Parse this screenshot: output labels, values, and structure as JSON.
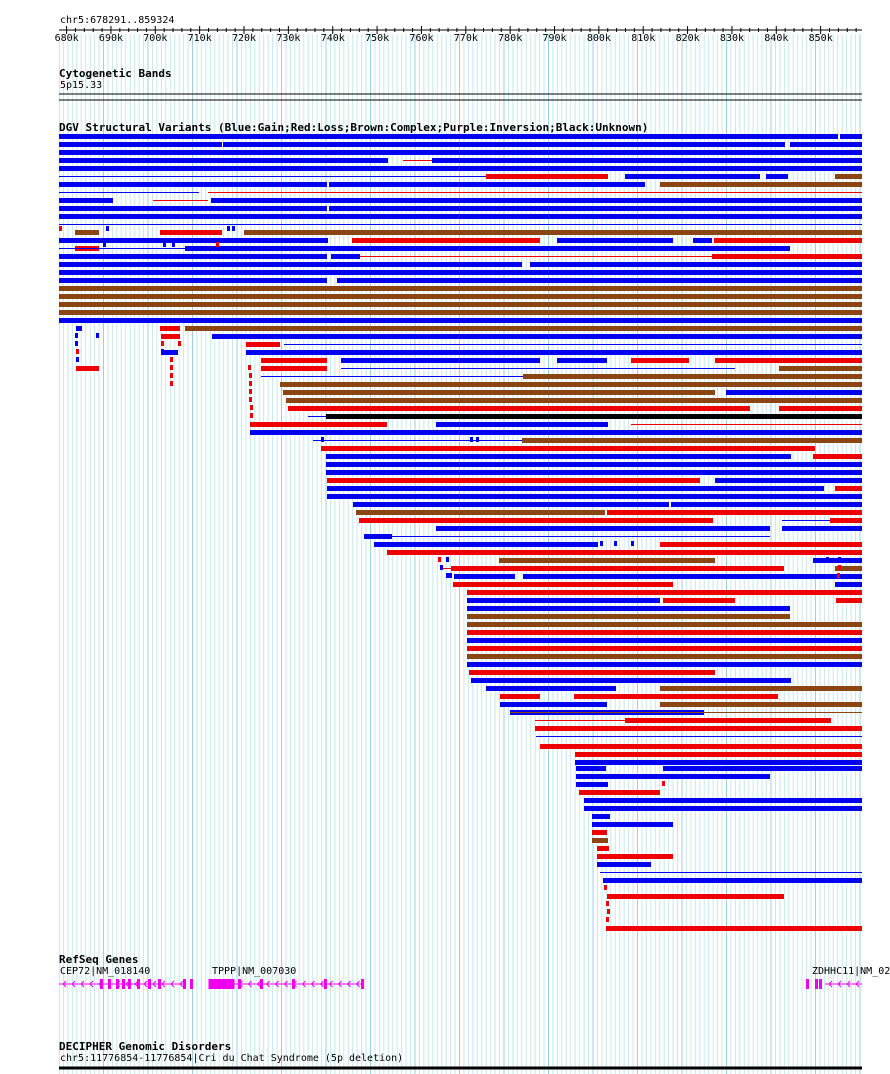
{
  "ruler": {
    "region_label": "chr5:678291..859324",
    "start": 678291,
    "end": 859324,
    "tick_labels": [
      "680k",
      "690k",
      "700k",
      "710k",
      "720k",
      "730k",
      "740k",
      "750k",
      "760k",
      "770k",
      "780k",
      "790k",
      "800k",
      "810k",
      "820k",
      "830k",
      "840k",
      "850k"
    ],
    "tick_values": [
      680000,
      690000,
      700000,
      710000,
      720000,
      730000,
      740000,
      750000,
      760000,
      770000,
      780000,
      790000,
      800000,
      810000,
      820000,
      830000,
      840000,
      850000
    ]
  },
  "cytoband": {
    "title": "Cytogenetic Bands",
    "band_label": "5p15.33"
  },
  "dgv": {
    "title": "DGV Structural Variants (Blue:Gain;Red:Loss;Brown:Complex;Purple:Inversion;Black:Unknown)",
    "colors": {
      "gain": "#0000ee",
      "loss": "#ee0000",
      "complex": "#8b4513",
      "inversion": "#800080",
      "unknown": "#000000"
    }
  },
  "refseq": {
    "title": "RefSeq Genes",
    "genes": [
      {
        "label": "CEP72|NM_018140",
        "start": 678291,
        "end": 706500,
        "strand": "-"
      },
      {
        "label": "TPPP|NM_007030",
        "start": 712000,
        "end": 746400,
        "strand": "-"
      },
      {
        "label": "ZDHHC11|NM_02",
        "start": 851000,
        "end": 859324,
        "strand": "-"
      }
    ],
    "color": "#ee00ee"
  },
  "decipher": {
    "title": "DECIPHER Genomic Disorders",
    "entry_label": "chr5:11776854-11776854|Cri du Chat Syndrome (5p deletion)"
  }
}
